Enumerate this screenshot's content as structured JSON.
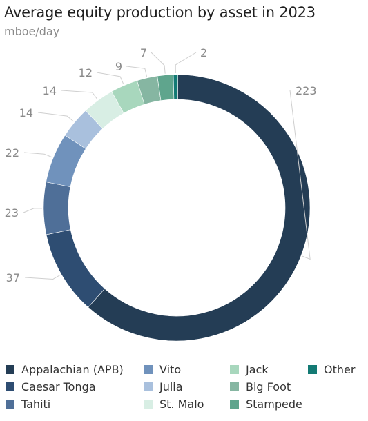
{
  "chart_data": {
    "type": "pie",
    "title": "Average equity production by asset in 2023",
    "subtitle": "mboe/day",
    "slices": [
      {
        "label": "Appalachian (APB)",
        "value": 223,
        "color": "#243d55"
      },
      {
        "label": "Caesar Tonga",
        "value": 37,
        "color": "#2e4d72"
      },
      {
        "label": "Tahiti",
        "value": 23,
        "color": "#4f6f98"
      },
      {
        "label": "Vito",
        "value": 22,
        "color": "#7092bc"
      },
      {
        "label": "Julia",
        "value": 14,
        "color": "#a9c0dd"
      },
      {
        "label": "St. Malo",
        "value": 14,
        "color": "#d8eee4"
      },
      {
        "label": "Jack",
        "value": 12,
        "color": "#a8d7bd"
      },
      {
        "label": "Big Foot",
        "value": 9,
        "color": "#86b6a2"
      },
      {
        "label": "Stampede",
        "value": 7,
        "color": "#5fa58d"
      },
      {
        "label": "Other",
        "value": 2,
        "color": "#137a74"
      }
    ],
    "legend_placement": "bottom"
  }
}
